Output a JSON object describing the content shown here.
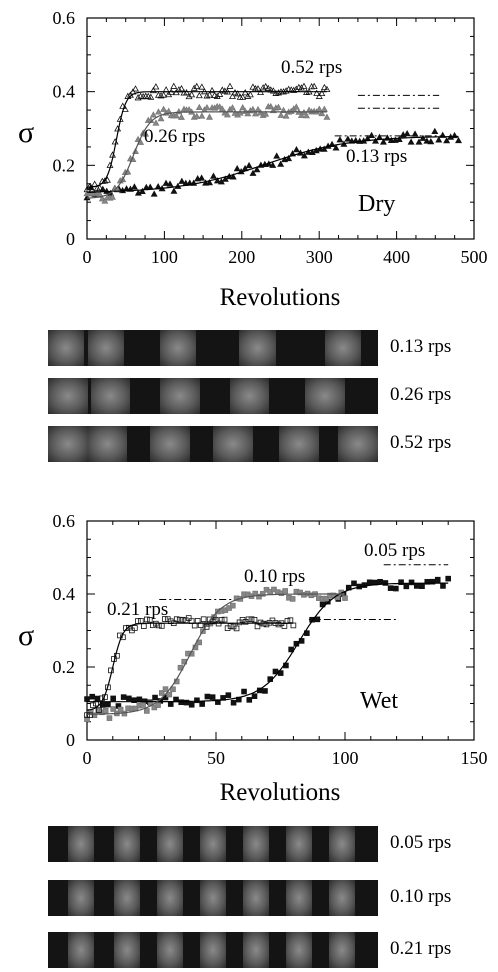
{
  "chart_data": [
    {
      "type": "scatter",
      "xlabel": "Revolutions",
      "ylabel": "σ",
      "xlim": [
        0,
        500
      ],
      "ylim": [
        0,
        0.6
      ],
      "xticks": [
        "0",
        "100",
        "200",
        "300",
        "400",
        "500"
      ],
      "yticks": [
        "0",
        "0.2",
        "0.4",
        "0.6"
      ],
      "annotation": "Dry",
      "grid": false,
      "series": [
        {
          "name": "0.13 rps",
          "marker": "filled-triangle",
          "color": "#111111",
          "fit": {
            "start": 0.125,
            "end": 0.28,
            "x_mid": 230,
            "width": 55
          },
          "points_x": [
            0,
            480
          ],
          "plateau": {
            "value": 0.28,
            "x": [
              320,
              460
            ]
          }
        },
        {
          "name": "0.26 rps",
          "marker": "gray-triangle",
          "color": "#7a7a7a",
          "fit": {
            "start": 0.11,
            "end": 0.345,
            "x_mid": 60,
            "width": 11
          },
          "points_x": [
            0,
            310
          ],
          "plateau": {
            "value": 0.355,
            "x": [
              350,
              455
            ]
          }
        },
        {
          "name": "0.52 rps",
          "marker": "open-triangle",
          "color": "#333333",
          "fit": {
            "start": 0.14,
            "end": 0.4,
            "x_mid": 38,
            "width": 6
          },
          "points_x": [
            0,
            310
          ],
          "plateau": {
            "value": 0.39,
            "x": [
              350,
              455
            ]
          }
        }
      ]
    },
    {
      "type": "scatter",
      "xlabel": "Revolutions",
      "ylabel": "σ",
      "xlim": [
        0,
        150
      ],
      "ylim": [
        0,
        0.6
      ],
      "xticks": [
        "0",
        "50",
        "100",
        "150"
      ],
      "yticks": [
        "0",
        "0.2",
        "0.4",
        "0.6"
      ],
      "annotation": "Wet",
      "grid": false,
      "series": [
        {
          "name": "0.05 rps",
          "marker": "filled-square",
          "color": "#111111",
          "fit": {
            "start": 0.105,
            "end": 0.43,
            "x_mid": 82,
            "width": 7
          },
          "points_x": [
            0,
            140
          ],
          "plateau": {
            "value": 0.48,
            "x": [
              115,
              140
            ]
          }
        },
        {
          "name": "0.10 rps",
          "marker": "gray-square",
          "color": "#7a7a7a",
          "fit": {
            "start": 0.07,
            "end": 0.4,
            "x_mid": 40,
            "width": 6
          },
          "points_x": [
            0,
            100
          ],
          "plateau": {
            "value": 0.33,
            "x": [
              86,
              120
            ]
          }
        },
        {
          "name": "0.21 rps",
          "marker": "open-square",
          "color": "#333333",
          "fit": {
            "start": 0.08,
            "end": 0.32,
            "x_mid": 10,
            "width": 2
          },
          "points_x": [
            0,
            80
          ],
          "plateau": {
            "value": 0.385,
            "x": [
              28,
              56
            ]
          }
        }
      ]
    }
  ],
  "dry_strips": [
    {
      "label": "0.13 rps",
      "bands": [
        0.0,
        0.12,
        0.34,
        0.58,
        0.84
      ],
      "band_width": 0.11
    },
    {
      "label": "0.26 rps",
      "bands": [
        0.0,
        0.13,
        0.34,
        0.55,
        0.78
      ],
      "band_width": 0.12
    },
    {
      "label": "0.52 rps",
      "bands": [
        0.0,
        0.12,
        0.31,
        0.5,
        0.7,
        0.88
      ],
      "band_width": 0.12
    }
  ],
  "wet_strips": [
    {
      "label": "0.05 rps",
      "bands": [
        0.06,
        0.2,
        0.33,
        0.46,
        0.59,
        0.72,
        0.85
      ],
      "band_width": 0.08
    },
    {
      "label": "0.10 rps",
      "bands": [
        0.06,
        0.2,
        0.33,
        0.46,
        0.59,
        0.72,
        0.85
      ],
      "band_width": 0.08
    },
    {
      "label": "0.21 rps",
      "bands": [
        0.06,
        0.2,
        0.33,
        0.46,
        0.59,
        0.72,
        0.85
      ],
      "band_width": 0.08
    }
  ]
}
